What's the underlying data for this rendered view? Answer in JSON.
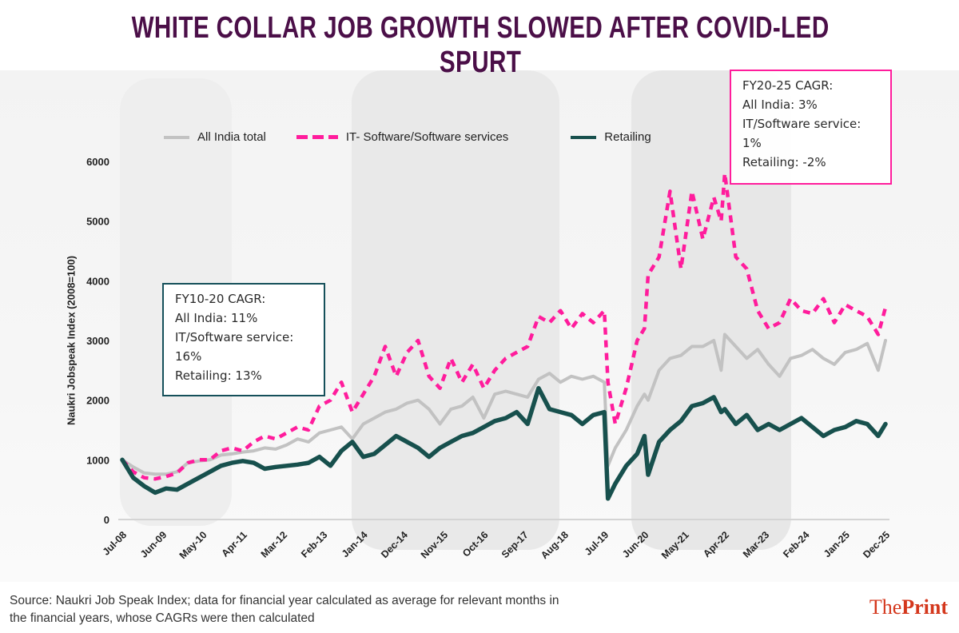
{
  "title": "WHITE COLLAR JOB GROWTH  SLOWED AFTER COVID-LED SPURT",
  "source_text_line1": "Source: Naukri Job Speak Index; data for financial year calculated as average for relevant months in",
  "source_text_line2": "the financial years, whose CAGRs were then calculated",
  "logo": {
    "part1": "The",
    "part2": "Print"
  },
  "annotations": [
    {
      "title": "FY10-20 CAGR:",
      "lines": [
        "All India: 11%",
        "IT/Software service:",
        "16%",
        "Retailing: 13%"
      ]
    },
    {
      "title": "FY20-25 CAGR:",
      "lines": [
        "All India: 3%",
        "IT/Software service:",
        "1%",
        "Retailing: -2%"
      ]
    }
  ],
  "chart_data": {
    "type": "line",
    "title": "WHITE COLLAR JOB GROWTH SLOWED AFTER COVID-LED SPURT",
    "xlabel": "",
    "ylabel": "Naukri Jobspeak Index (2008=100)",
    "ylim": [
      0,
      6000
    ],
    "yticks": [
      0,
      1000,
      2000,
      3000,
      4000,
      5000,
      6000
    ],
    "xlim": [
      "Jul-08",
      "Dec-25"
    ],
    "xticks": [
      "Jul-08",
      "Jun-09",
      "May-10",
      "Apr-11",
      "Mar-12",
      "Feb-13",
      "Jan-14",
      "Dec-14",
      "Nov-15",
      "Oct-16",
      "Sep-17",
      "Aug-18",
      "Jul-19",
      "Jun-20",
      "May-21",
      "Apr-22",
      "Mar-23",
      "Feb-24",
      "Jan-25",
      "Dec-25"
    ],
    "grid": false,
    "legend_position": "top",
    "x_unit": "months since Jul-08",
    "x": [
      0,
      3,
      6,
      9,
      12,
      15,
      18,
      21,
      24,
      27,
      30,
      33,
      36,
      39,
      42,
      45,
      48,
      51,
      54,
      57,
      60,
      63,
      66,
      69,
      72,
      75,
      78,
      81,
      84,
      87,
      90,
      93,
      96,
      99,
      102,
      105,
      108,
      111,
      114,
      117,
      120,
      123,
      126,
      129,
      132,
      133,
      135,
      138,
      141,
      143,
      144,
      147,
      150,
      153,
      156,
      159,
      162,
      164,
      165,
      168,
      171,
      174,
      177,
      180,
      183,
      186,
      189,
      192,
      195,
      198,
      201,
      204,
      207,
      209
    ],
    "series": [
      {
        "name": "All India total",
        "color": "#c2c2c2",
        "style": "solid",
        "values": [
          1000,
          880,
          780,
          760,
          760,
          800,
          950,
          980,
          1000,
          1080,
          1100,
          1130,
          1150,
          1200,
          1180,
          1250,
          1350,
          1300,
          1450,
          1500,
          1550,
          1350,
          1600,
          1700,
          1800,
          1850,
          1950,
          2000,
          1850,
          1600,
          1850,
          1900,
          2050,
          1700,
          2100,
          2150,
          2100,
          2050,
          2350,
          2450,
          2300,
          2400,
          2350,
          2400,
          2300,
          900,
          1200,
          1500,
          1900,
          2100,
          2000,
          2500,
          2700,
          2750,
          2900,
          2900,
          3000,
          2500,
          3100,
          2900,
          2700,
          2850,
          2600,
          2400,
          2700,
          2750,
          2850,
          2700,
          2600,
          2800,
          2850,
          2950,
          2500,
          3000
        ]
      },
      {
        "name": "IT- Software/Software services",
        "color": "#ff1c9c",
        "style": "dashed",
        "values": [
          1000,
          800,
          700,
          680,
          720,
          780,
          950,
          1000,
          1000,
          1150,
          1200,
          1150,
          1300,
          1400,
          1350,
          1450,
          1550,
          1500,
          1900,
          2000,
          2300,
          1800,
          2100,
          2400,
          2900,
          2400,
          2800,
          3000,
          2400,
          2200,
          2700,
          2300,
          2600,
          2200,
          2500,
          2700,
          2800,
          2900,
          3400,
          3300,
          3500,
          3200,
          3450,
          3300,
          3500,
          2300,
          1600,
          2200,
          3000,
          3200,
          4100,
          4400,
          5500,
          4200,
          5500,
          4700,
          5400,
          5000,
          5800,
          4400,
          4200,
          3500,
          3200,
          3300,
          3700,
          3500,
          3450,
          3700,
          3300,
          3600,
          3500,
          3400,
          3100,
          3550
        ]
      },
      {
        "name": "Retailing",
        "color": "#17504d",
        "style": "solid",
        "values": [
          1000,
          700,
          560,
          450,
          520,
          500,
          600,
          700,
          800,
          900,
          950,
          980,
          950,
          850,
          880,
          900,
          920,
          950,
          1050,
          900,
          1150,
          1300,
          1050,
          1100,
          1250,
          1400,
          1300,
          1200,
          1050,
          1200,
          1300,
          1400,
          1450,
          1550,
          1650,
          1700,
          1800,
          1600,
          2200,
          1850,
          1800,
          1750,
          1600,
          1750,
          1800,
          350,
          600,
          900,
          1100,
          1400,
          750,
          1300,
          1500,
          1650,
          1900,
          1950,
          2050,
          1800,
          1850,
          1600,
          1750,
          1500,
          1600,
          1500,
          1600,
          1700,
          1550,
          1400,
          1500,
          1550,
          1650,
          1600,
          1400,
          1600
        ]
      }
    ]
  }
}
